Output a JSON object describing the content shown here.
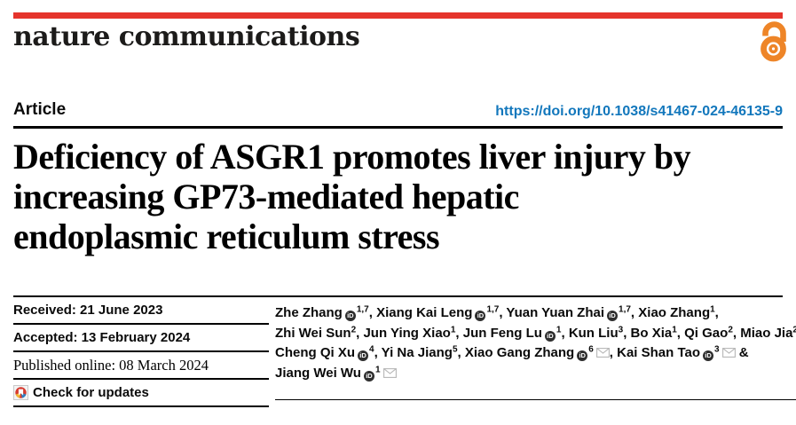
{
  "masthead": {
    "journal_name": "nature communications",
    "brand_bar_color": "#e5342c",
    "open_access_icon_color": "#ee8528"
  },
  "article": {
    "type_label": "Article",
    "doi": "https://doi.org/10.1038/s41467-024-46135-9",
    "doi_color": "#1277bc",
    "title_lines": [
      "Deficiency of ASGR1 promotes liver injury by",
      "increasing GP73-mediated hepatic",
      "endoplasmic reticulum stress"
    ]
  },
  "history": {
    "received": "Received: 21 June 2023",
    "accepted": "Accepted: 13 February 2024",
    "published": "Published online: 08 March 2024",
    "check_updates": "Check for updates"
  },
  "icons": {
    "orcid_label": "iD",
    "orcid_color": "#2e2e2e",
    "envelope_color": "#b7b7b7",
    "crossmark_colors": [
      "#d63a2f",
      "#f1b434",
      "#2f7fc1"
    ]
  },
  "authors": {
    "list": [
      {
        "name": "Zhe Zhang",
        "orcid": true,
        "sup": "1,7"
      },
      {
        "name": "Xiang Kai Leng",
        "orcid": true,
        "sup": "1,7"
      },
      {
        "name": "Yuan Yuan Zhai",
        "orcid": true,
        "sup": "1,7"
      },
      {
        "name": "Xiao Zhang",
        "sup": "1",
        "break_after": true
      },
      {
        "name": "Zhi Wei Sun",
        "sup": "2"
      },
      {
        "name": "Jun Ying Xiao",
        "sup": "1"
      },
      {
        "name": "Jun Feng Lu",
        "orcid": true,
        "sup": "1"
      },
      {
        "name": "Kun Liu",
        "sup": "3"
      },
      {
        "name": "Bo Xia",
        "sup": "1"
      },
      {
        "name": "Qi Gao",
        "sup": "2"
      },
      {
        "name": "Miao Jia",
        "sup": "2",
        "break_after": true
      },
      {
        "name": "Cheng Qi Xu",
        "orcid": true,
        "sup": "4"
      },
      {
        "name": "Yi Na Jiang",
        "sup": "5"
      },
      {
        "name": "Xiao Gang Zhang",
        "orcid": true,
        "sup": "6",
        "email": true
      },
      {
        "name": "Kai Shan Tao",
        "orcid": true,
        "sup": "3",
        "email": true,
        "break_after": true
      },
      {
        "name": "Jiang Wei Wu",
        "orcid": true,
        "sup": "1",
        "email": true
      }
    ],
    "last_separator": "&"
  }
}
